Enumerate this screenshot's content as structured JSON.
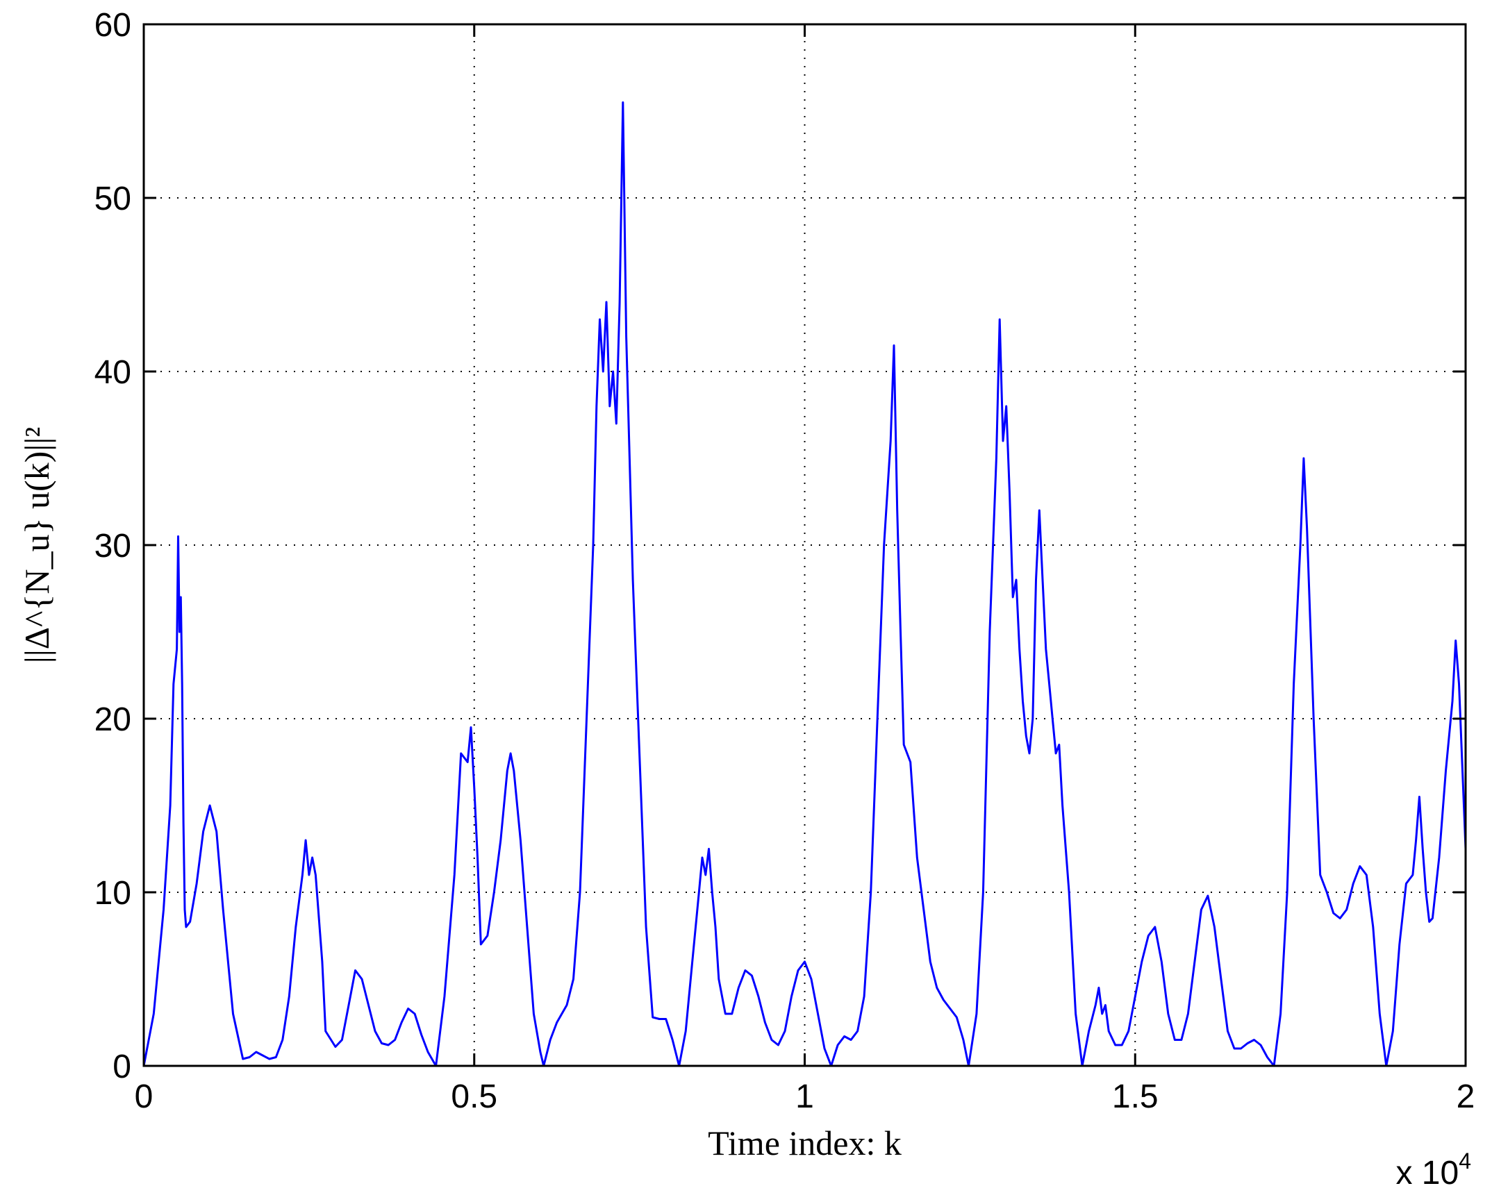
{
  "chart_data": {
    "type": "line",
    "title": "",
    "xlabel": "Time index:  k",
    "ylabel": "||Δ^{N_u} u(k)||²",
    "x_exponent_label": "x 10",
    "x_exponent_power": "4",
    "xlim": [
      0,
      20000
    ],
    "ylim": [
      0,
      60
    ],
    "xticks": [
      0,
      5000,
      10000,
      15000,
      20000
    ],
    "xtick_labels": [
      "0",
      "0.5",
      "1",
      "1.5",
      "2"
    ],
    "yticks": [
      0,
      10,
      20,
      30,
      40,
      50,
      60
    ],
    "ytick_labels": [
      "0",
      "10",
      "20",
      "30",
      "40",
      "50",
      "60"
    ],
    "grid": true,
    "series_color": "#0000ff",
    "series": [
      {
        "points": [
          [
            0,
            0
          ],
          [
            150,
            3
          ],
          [
            300,
            9
          ],
          [
            400,
            15
          ],
          [
            450,
            22
          ],
          [
            500,
            24
          ],
          [
            520,
            30.5
          ],
          [
            540,
            25
          ],
          [
            560,
            27
          ],
          [
            580,
            22
          ],
          [
            600,
            14
          ],
          [
            620,
            9
          ],
          [
            640,
            8
          ],
          [
            700,
            8.3
          ],
          [
            800,
            10.5
          ],
          [
            900,
            13.5
          ],
          [
            1000,
            15
          ],
          [
            1100,
            13.5
          ],
          [
            1200,
            9
          ],
          [
            1350,
            3
          ],
          [
            1500,
            0.4
          ],
          [
            1600,
            0.5
          ],
          [
            1700,
            0.8
          ],
          [
            1800,
            0.6
          ],
          [
            1900,
            0.4
          ],
          [
            2000,
            0.5
          ],
          [
            2100,
            1.5
          ],
          [
            2200,
            4
          ],
          [
            2300,
            8
          ],
          [
            2400,
            11
          ],
          [
            2450,
            13
          ],
          [
            2500,
            11
          ],
          [
            2550,
            12
          ],
          [
            2600,
            11
          ],
          [
            2700,
            6
          ],
          [
            2750,
            2
          ],
          [
            2900,
            1.1
          ],
          [
            3000,
            1.5
          ],
          [
            3100,
            3.5
          ],
          [
            3200,
            5.5
          ],
          [
            3300,
            5
          ],
          [
            3400,
            3.5
          ],
          [
            3500,
            2
          ],
          [
            3600,
            1.3
          ],
          [
            3700,
            1.2
          ],
          [
            3800,
            1.5
          ],
          [
            3900,
            2.5
          ],
          [
            4000,
            3.3
          ],
          [
            4100,
            3
          ],
          [
            4200,
            1.8
          ],
          [
            4300,
            0.8
          ],
          [
            4420,
            0
          ],
          [
            4550,
            4
          ],
          [
            4700,
            11
          ],
          [
            4800,
            18
          ],
          [
            4900,
            17.5
          ],
          [
            4950,
            19.5
          ],
          [
            5000,
            16
          ],
          [
            5050,
            12
          ],
          [
            5100,
            7
          ],
          [
            5200,
            7.5
          ],
          [
            5300,
            10
          ],
          [
            5400,
            13
          ],
          [
            5500,
            17
          ],
          [
            5550,
            18
          ],
          [
            5600,
            17
          ],
          [
            5700,
            13
          ],
          [
            5800,
            8
          ],
          [
            5900,
            3
          ],
          [
            6000,
            0.8
          ],
          [
            6050,
            0
          ],
          [
            6150,
            1.5
          ],
          [
            6250,
            2.5
          ],
          [
            6400,
            3.5
          ],
          [
            6500,
            5
          ],
          [
            6600,
            10
          ],
          [
            6700,
            20
          ],
          [
            6800,
            30
          ],
          [
            6850,
            38
          ],
          [
            6900,
            43
          ],
          [
            6950,
            40
          ],
          [
            7000,
            44
          ],
          [
            7050,
            38
          ],
          [
            7100,
            40
          ],
          [
            7150,
            37
          ],
          [
            7200,
            44
          ],
          [
            7250,
            55.5
          ],
          [
            7300,
            42
          ],
          [
            7350,
            35
          ],
          [
            7400,
            28
          ],
          [
            7500,
            18
          ],
          [
            7600,
            8
          ],
          [
            7700,
            2.8
          ],
          [
            7800,
            2.7
          ],
          [
            7900,
            2.7
          ],
          [
            8000,
            1.5
          ],
          [
            8100,
            0
          ],
          [
            8200,
            2
          ],
          [
            8300,
            6
          ],
          [
            8400,
            10
          ],
          [
            8450,
            12
          ],
          [
            8500,
            11
          ],
          [
            8550,
            12.5
          ],
          [
            8600,
            10
          ],
          [
            8650,
            8
          ],
          [
            8700,
            5
          ],
          [
            8800,
            3
          ],
          [
            8900,
            3
          ],
          [
            9000,
            4.5
          ],
          [
            9100,
            5.5
          ],
          [
            9200,
            5.2
          ],
          [
            9300,
            4
          ],
          [
            9400,
            2.5
          ],
          [
            9500,
            1.5
          ],
          [
            9600,
            1.2
          ],
          [
            9700,
            2
          ],
          [
            9800,
            4
          ],
          [
            9900,
            5.5
          ],
          [
            10000,
            6
          ],
          [
            10100,
            5
          ],
          [
            10200,
            3
          ],
          [
            10300,
            1
          ],
          [
            10400,
            0
          ],
          [
            10500,
            1.2
          ],
          [
            10600,
            1.7
          ],
          [
            10700,
            1.5
          ],
          [
            10800,
            2
          ],
          [
            10900,
            4
          ],
          [
            11000,
            10
          ],
          [
            11100,
            20
          ],
          [
            11200,
            30
          ],
          [
            11300,
            36
          ],
          [
            11350,
            41.5
          ],
          [
            11400,
            32
          ],
          [
            11450,
            25
          ],
          [
            11500,
            18.5
          ],
          [
            11600,
            17.5
          ],
          [
            11700,
            12
          ],
          [
            11800,
            9
          ],
          [
            11900,
            6
          ],
          [
            12000,
            4.5
          ],
          [
            12100,
            3.8
          ],
          [
            12200,
            3.3
          ],
          [
            12300,
            2.8
          ],
          [
            12400,
            1.5
          ],
          [
            12480,
            0
          ],
          [
            12600,
            3
          ],
          [
            12700,
            10
          ],
          [
            12800,
            25
          ],
          [
            12900,
            35
          ],
          [
            12950,
            43
          ],
          [
            13000,
            36
          ],
          [
            13050,
            38
          ],
          [
            13100,
            33
          ],
          [
            13150,
            27
          ],
          [
            13200,
            28
          ],
          [
            13250,
            24
          ],
          [
            13300,
            21
          ],
          [
            13350,
            19
          ],
          [
            13400,
            18
          ],
          [
            13450,
            20
          ],
          [
            13500,
            28
          ],
          [
            13550,
            32
          ],
          [
            13600,
            28
          ],
          [
            13650,
            24
          ],
          [
            13700,
            22
          ],
          [
            13750,
            20
          ],
          [
            13800,
            18
          ],
          [
            13850,
            18.5
          ],
          [
            13900,
            15
          ],
          [
            14000,
            10
          ],
          [
            14100,
            3
          ],
          [
            14200,
            0
          ],
          [
            14300,
            2
          ],
          [
            14400,
            3.5
          ],
          [
            14450,
            4.5
          ],
          [
            14500,
            3
          ],
          [
            14550,
            3.5
          ],
          [
            14600,
            2
          ],
          [
            14700,
            1.2
          ],
          [
            14800,
            1.2
          ],
          [
            14900,
            2
          ],
          [
            15000,
            4
          ],
          [
            15100,
            6
          ],
          [
            15200,
            7.5
          ],
          [
            15300,
            8
          ],
          [
            15400,
            6
          ],
          [
            15500,
            3
          ],
          [
            15600,
            1.5
          ],
          [
            15700,
            1.5
          ],
          [
            15800,
            3
          ],
          [
            15900,
            6
          ],
          [
            16000,
            9
          ],
          [
            16100,
            9.8
          ],
          [
            16200,
            8
          ],
          [
            16300,
            5
          ],
          [
            16400,
            2
          ],
          [
            16500,
            1
          ],
          [
            16600,
            1
          ],
          [
            16700,
            1.3
          ],
          [
            16800,
            1.5
          ],
          [
            16900,
            1.2
          ],
          [
            17000,
            0.5
          ],
          [
            17100,
            0
          ],
          [
            17200,
            3
          ],
          [
            17300,
            10
          ],
          [
            17400,
            22
          ],
          [
            17500,
            30
          ],
          [
            17550,
            35
          ],
          [
            17600,
            31
          ],
          [
            17700,
            20
          ],
          [
            17800,
            11
          ],
          [
            17900,
            10
          ],
          [
            18000,
            8.8
          ],
          [
            18100,
            8.5
          ],
          [
            18200,
            9
          ],
          [
            18300,
            10.5
          ],
          [
            18400,
            11.5
          ],
          [
            18500,
            11
          ],
          [
            18600,
            8
          ],
          [
            18700,
            3
          ],
          [
            18800,
            0
          ],
          [
            18900,
            2
          ],
          [
            19000,
            7
          ],
          [
            19100,
            10.5
          ],
          [
            19200,
            11
          ],
          [
            19250,
            13
          ],
          [
            19300,
            15.5
          ],
          [
            19350,
            12.5
          ],
          [
            19400,
            10
          ],
          [
            19450,
            8.3
          ],
          [
            19500,
            8.5
          ],
          [
            19600,
            12
          ],
          [
            19700,
            17
          ],
          [
            19800,
            21
          ],
          [
            19850,
            24.5
          ],
          [
            19900,
            22
          ],
          [
            20000,
            12.5
          ]
        ]
      }
    ]
  }
}
